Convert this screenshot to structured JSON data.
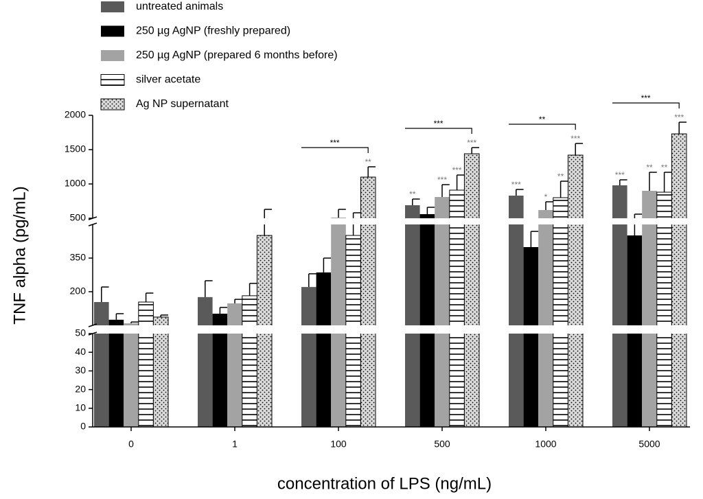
{
  "chart_data": {
    "type": "bar",
    "y_label": "TNF alpha (pg/mL)",
    "x_label": "concentration of LPS (ng/mL)",
    "categories": [
      "0",
      "1",
      "100",
      "500",
      "1000",
      "5000"
    ],
    "ylim": [
      0,
      2000
    ],
    "y_segments": [
      [
        0,
        50
      ],
      [
        50,
        500
      ],
      [
        500,
        2000
      ]
    ],
    "yticks": [
      0,
      10,
      20,
      30,
      40,
      50,
      200,
      350,
      500,
      1000,
      1500,
      2000
    ],
    "series": [
      {
        "name": "untreated animals",
        "color": "#5a5a5a",
        "pattern": "solid",
        "values": [
          154,
          176,
          221,
          690,
          830,
          980
        ],
        "errors": [
          67,
          73,
          59,
          90,
          90,
          80
        ],
        "stars": [
          null,
          null,
          null,
          "**",
          "***",
          "***"
        ]
      },
      {
        "name": "250 µg  AgNP (freshly prepared)",
        "color": "#000000",
        "pattern": "solid",
        "values": [
          75,
          102,
          286,
          560,
          399,
          451
        ],
        "errors": [
          27,
          28,
          64,
          100,
          70,
          109
        ],
        "stars": [
          null,
          null,
          null,
          null,
          null,
          null
        ]
      },
      {
        "name": "250 µg  AgNP (prepared 6 months before)",
        "color": "#a3a3a3",
        "pattern": "solid",
        "values": [
          59,
          148,
          510,
          810,
          620,
          900
        ],
        "errors": [
          6,
          18,
          120,
          180,
          120,
          270
        ],
        "stars": [
          null,
          null,
          null,
          "***",
          "*",
          "**"
        ]
      },
      {
        "name": "silver acetate",
        "color": "#000000",
        "pattern": "stripes",
        "values": [
          154,
          182,
          451,
          910,
          800,
          880
        ],
        "errors": [
          40,
          55,
          129,
          220,
          240,
          290
        ],
        "stars": [
          null,
          null,
          null,
          "***",
          "**",
          "**"
        ]
      },
      {
        "name": "Ag NP supernatant",
        "color": "#000000",
        "pattern": "dots",
        "values": [
          87,
          451,
          1100,
          1440,
          1420,
          1730
        ],
        "errors": [
          9,
          179,
          150,
          90,
          170,
          170
        ],
        "stars": [
          null,
          null,
          "**",
          "***",
          "***",
          "***"
        ]
      }
    ],
    "brackets": [
      {
        "category": 2,
        "label": "***"
      },
      {
        "category": 3,
        "label": "***"
      },
      {
        "category": 4,
        "label": "**"
      },
      {
        "category": 5,
        "label": "***"
      }
    ]
  }
}
